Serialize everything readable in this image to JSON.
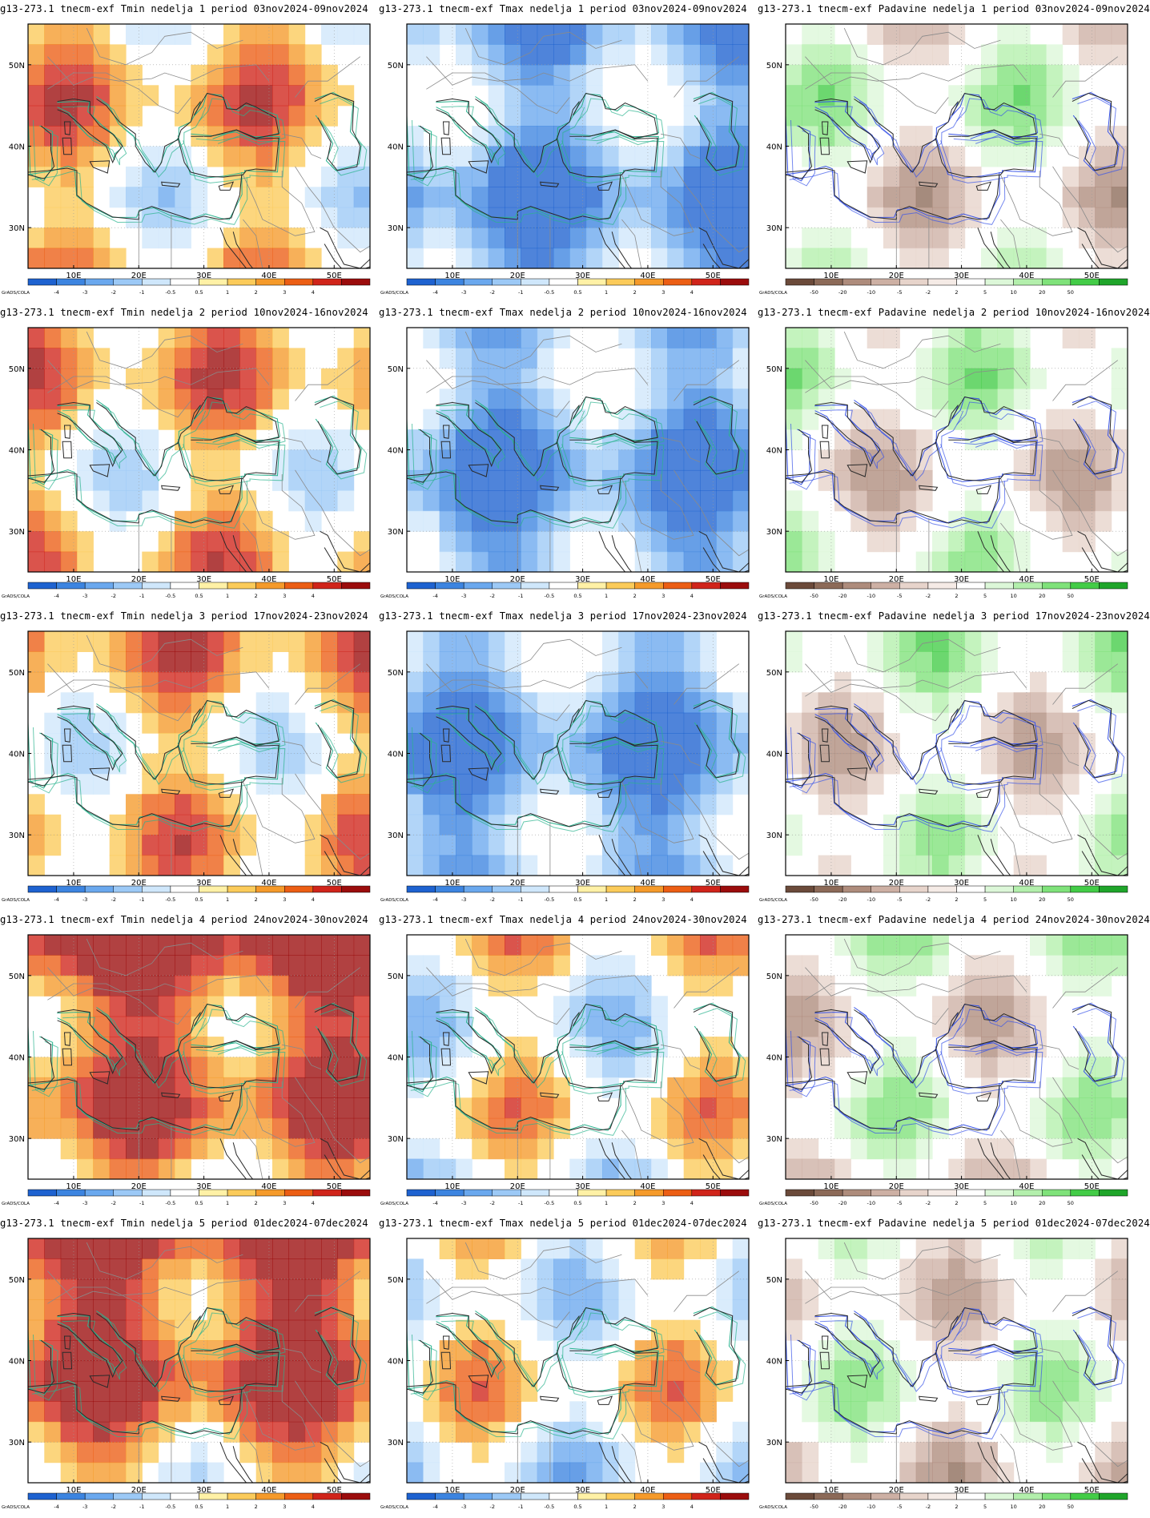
{
  "figure": {
    "columns": [
      "Tmin",
      "Tmax",
      "Padavine"
    ],
    "rows": 5
  },
  "axes": {
    "lat_ticks": [
      "50N",
      "40N",
      "30N"
    ],
    "lon_ticks": [
      "10E",
      "20E",
      "30E",
      "40E",
      "50E"
    ]
  },
  "legends": {
    "temp": {
      "credit": "GrADS/COLA",
      "labels": [
        "-4",
        "-3",
        "-2",
        "-1",
        "-0.5",
        "0.5",
        "1",
        "2",
        "3",
        "4"
      ],
      "colors": [
        "#1e62d0",
        "#3c84e0",
        "#6aa8ee",
        "#9cc9f6",
        "#cfe7fb",
        "#ffffff",
        "#fff1a6",
        "#fbcb5a",
        "#f59a2a",
        "#ec5e14",
        "#d0241a",
        "#9b0c0c"
      ]
    },
    "precip": {
      "credit": "GrADS/COLA",
      "labels": [
        "-50",
        "-20",
        "-10",
        "-5",
        "-2",
        "2",
        "5",
        "10",
        "20",
        "50"
      ],
      "colors": [
        "#6b4a3a",
        "#8c6a58",
        "#ae8c7c",
        "#cdb0a4",
        "#e7d4cb",
        "#f5ebe6",
        "#ffffff",
        "#dcf7d8",
        "#b3efac",
        "#7fe27a",
        "#43cc47",
        "#1fa52a"
      ]
    }
  },
  "panels": [
    {
      "title": "g13-273.1 tnecm-exf Tmin nedelja 1 period 03nov2024-09nov2024",
      "variable": "Tmin",
      "legend": "temp"
    },
    {
      "title": "g13-273.1 tnecm-exf Tmax nedelja 1 period 03nov2024-09nov2024",
      "variable": "Tmax",
      "legend": "temp"
    },
    {
      "title": "g13-273.1 tnecm-exf Padavine nedelja 1 period 03nov2024-09nov2024",
      "variable": "Padavine",
      "legend": "precip"
    },
    {
      "title": "g13-273.1 tnecm-exf Tmin nedelja 2 period 10nov2024-16nov2024",
      "variable": "Tmin",
      "legend": "temp"
    },
    {
      "title": "g13-273.1 tnecm-exf Tmax nedelja 2 period 10nov2024-16nov2024",
      "variable": "Tmax",
      "legend": "temp"
    },
    {
      "title": "g13-273.1 tnecm-exf Padavine nedelja 2 period 10nov2024-16nov2024",
      "variable": "Padavine",
      "legend": "precip"
    },
    {
      "title": "g13-273.1 tnecm-exf Tmin nedelja 3 period 17nov2024-23nov2024",
      "variable": "Tmin",
      "legend": "temp"
    },
    {
      "title": "g13-273.1 tnecm-exf Tmax nedelja 3 period 17nov2024-23nov2024",
      "variable": "Tmax",
      "legend": "temp"
    },
    {
      "title": "g13-273.1 tnecm-exf Padavine nedelja 3 period 17nov2024-23nov2024",
      "variable": "Padavine",
      "legend": "precip"
    },
    {
      "title": "g13-273.1 tnecm-exf Tmin nedelja 4 period 24nov2024-30nov2024",
      "variable": "Tmin",
      "legend": "temp"
    },
    {
      "title": "g13-273.1 tnecm-exf Tmax nedelja 4 period 24nov2024-30nov2024",
      "variable": "Tmax",
      "legend": "temp"
    },
    {
      "title": "g13-273.1 tnecm-exf Padavine nedelja 4 period 24nov2024-30nov2024",
      "variable": "Padavine",
      "legend": "precip"
    },
    {
      "title": "g13-273.1 tnecm-exf Tmin nedelja 5 period 01dec2024-07dec2024",
      "variable": "Tmin",
      "legend": "temp"
    },
    {
      "title": "g13-273.1 tnecm-exf Tmax nedelja 5 period 01dec2024-07dec2024",
      "variable": "Tmax",
      "legend": "temp"
    },
    {
      "title": "g13-273.1 tnecm-exf Padavine nedelja 5 period 01dec2024-07dec2024",
      "variable": "Padavine",
      "legend": "precip"
    }
  ]
}
